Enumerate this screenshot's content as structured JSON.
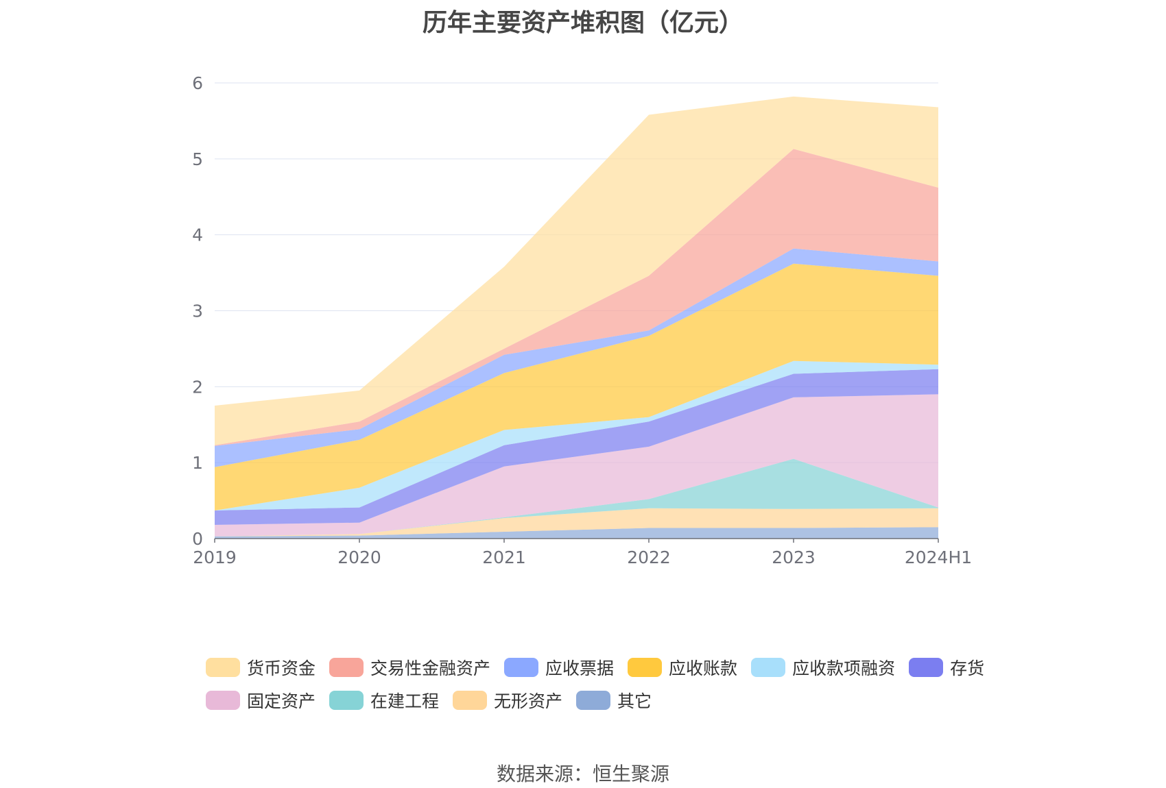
{
  "page": {
    "source": "数据来源：恒生聚源"
  },
  "chart_data": {
    "type": "area",
    "stacked": true,
    "title": "历年主要资产堆积图（亿元）",
    "categories": [
      "2019",
      "2020",
      "2021",
      "2022",
      "2023",
      "2024H1"
    ],
    "ylim": [
      0,
      6
    ],
    "yticks": [
      0,
      1,
      2,
      3,
      4,
      5,
      6
    ],
    "grid": true,
    "legend_position": "bottom",
    "series": [
      {
        "name": "其它",
        "color": "#8eabd8",
        "values": [
          0.03,
          0.04,
          0.09,
          0.14,
          0.14,
          0.15
        ]
      },
      {
        "name": "无形资产",
        "color": "#ffd699",
        "values": [
          0.0,
          0.02,
          0.18,
          0.26,
          0.25,
          0.25
        ]
      },
      {
        "name": "在建工程",
        "color": "#86d3d6",
        "values": [
          0.0,
          0.0,
          0.01,
          0.12,
          0.66,
          0.01
        ]
      },
      {
        "name": "固定资产",
        "color": "#e8b9d8",
        "values": [
          0.15,
          0.15,
          0.67,
          0.69,
          0.81,
          1.49
        ]
      },
      {
        "name": "存货",
        "color": "#7b7ef0",
        "values": [
          0.19,
          0.2,
          0.28,
          0.33,
          0.31,
          0.33
        ]
      },
      {
        "name": "应收款项融资",
        "color": "#a8dffb",
        "values": [
          0.0,
          0.26,
          0.2,
          0.06,
          0.17,
          0.06
        ]
      },
      {
        "name": "应收账款",
        "color": "#ffc93e",
        "values": [
          0.57,
          0.63,
          0.75,
          1.07,
          1.28,
          1.17
        ]
      },
      {
        "name": "应收票据",
        "color": "#8ba8ff",
        "values": [
          0.28,
          0.14,
          0.24,
          0.07,
          0.2,
          0.19
        ]
      },
      {
        "name": "交易性金融资产",
        "color": "#f8a59a",
        "values": [
          0.01,
          0.1,
          0.08,
          0.72,
          1.31,
          0.97
        ]
      },
      {
        "name": "货币资金",
        "color": "#ffdf9f",
        "values": [
          0.52,
          0.41,
          1.08,
          2.12,
          0.69,
          1.06
        ]
      }
    ],
    "legend_order": [
      "货币资金",
      "交易性金融资产",
      "应收票据",
      "应收账款",
      "应收款项融资",
      "存货",
      "固定资产",
      "在建工程",
      "无形资产",
      "其它"
    ]
  }
}
